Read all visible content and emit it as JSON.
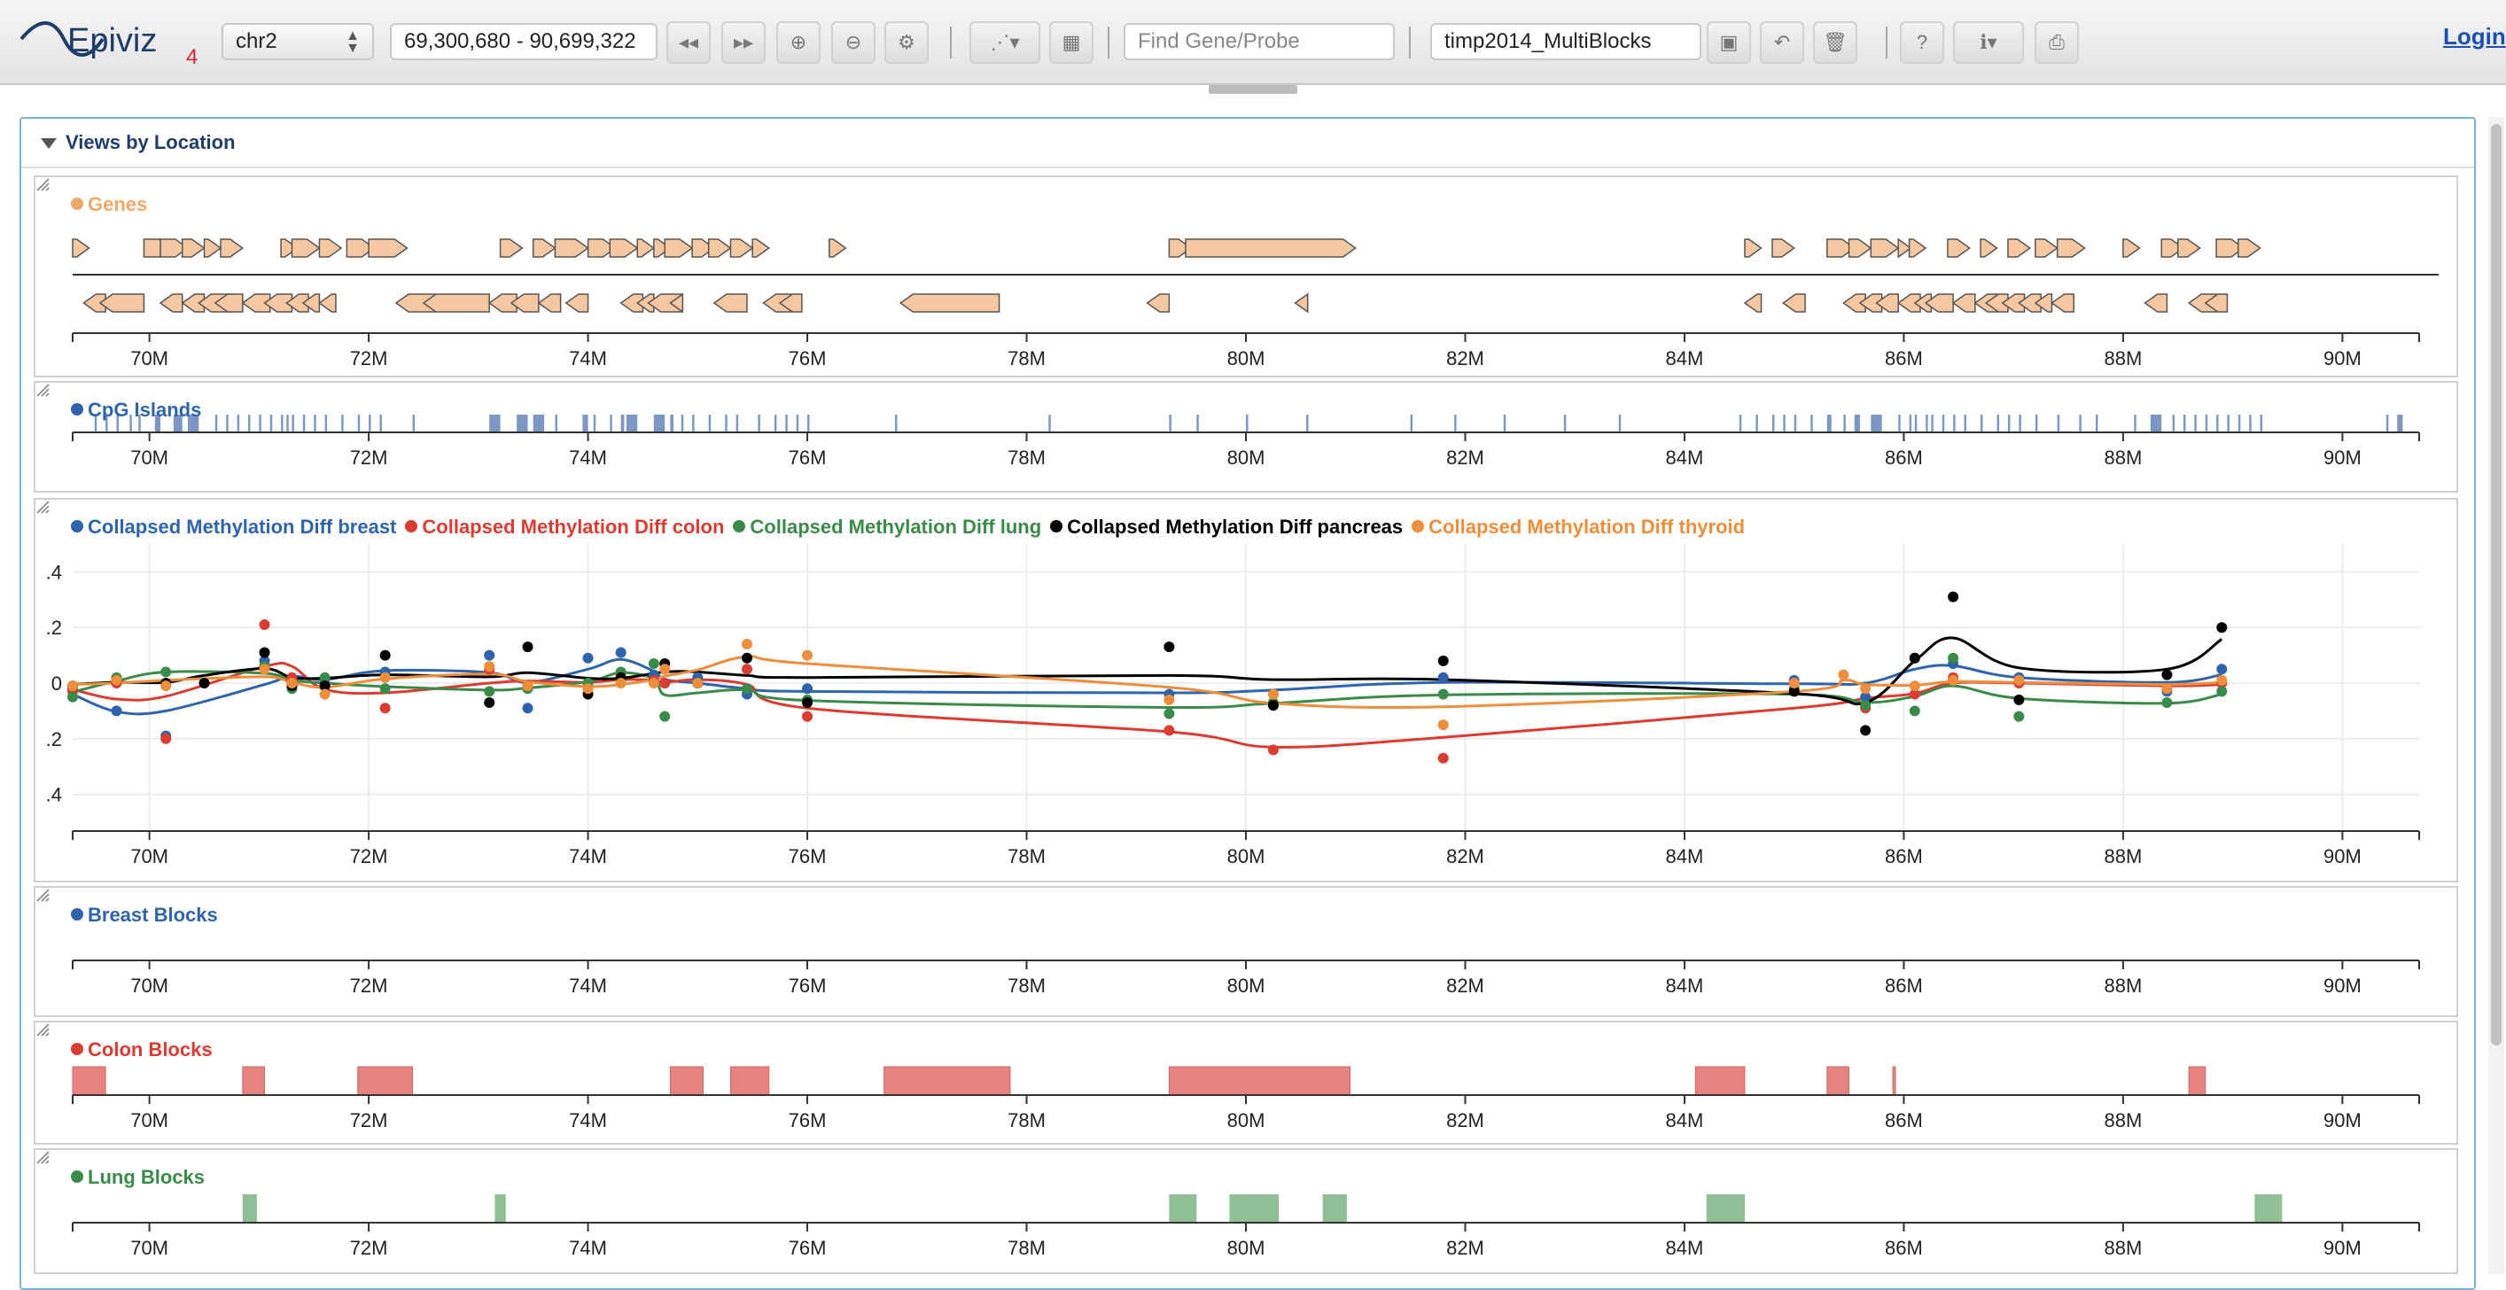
{
  "app": {
    "logo_text": "Epiviz",
    "logo_version": "4",
    "login_label": "Login"
  },
  "toolbar": {
    "chromosome": "chr2",
    "location": "69,300,680 - 90,699,322",
    "find_placeholder": "Find Gene/Probe",
    "workspace_name": "timp2014_MultiBlocks",
    "buttons": [
      {
        "name": "move-left-icon",
        "glyph": "◂◂"
      },
      {
        "name": "move-right-icon",
        "glyph": "▸▸"
      },
      {
        "name": "zoom-in-icon",
        "glyph": "⊕"
      },
      {
        "name": "zoom-out-icon",
        "glyph": "⊖"
      },
      {
        "name": "settings-icon",
        "glyph": "⚙"
      },
      {
        "name": "scatter-plot-menu-icon",
        "glyph": "⋰▾"
      },
      {
        "name": "grid-icon",
        "glyph": "▦"
      },
      {
        "name": "save-icon",
        "glyph": "▣"
      },
      {
        "name": "undo-icon",
        "glyph": "↶"
      },
      {
        "name": "trash-icon",
        "glyph": "🗑"
      },
      {
        "name": "help-icon",
        "glyph": "?"
      },
      {
        "name": "info-menu-icon",
        "glyph": "ℹ▾"
      },
      {
        "name": "print-icon",
        "glyph": "⎙"
      }
    ]
  },
  "panel": {
    "title": "Views by Location"
  },
  "axis": {
    "domain": [
      69.3,
      90.7
    ],
    "ticks": [
      "70M",
      "72M",
      "74M",
      "76M",
      "78M",
      "80M",
      "82M",
      "84M",
      "86M",
      "88M",
      "90M"
    ],
    "tick_values": [
      70,
      72,
      74,
      76,
      78,
      80,
      82,
      84,
      86,
      88,
      90
    ]
  },
  "tracks": {
    "genes": {
      "title": "Genes",
      "color": "#f0a868",
      "fill": "#f6c8a2",
      "forward": [
        [
          69.3,
          69.45
        ],
        [
          69.95,
          70.2
        ],
        [
          70.1,
          70.35
        ],
        [
          70.3,
          70.5
        ],
        [
          70.5,
          70.65
        ],
        [
          70.65,
          70.85
        ],
        [
          71.2,
          71.35
        ],
        [
          71.3,
          71.55
        ],
        [
          71.55,
          71.75
        ],
        [
          71.8,
          72.05
        ],
        [
          72.0,
          72.35
        ],
        [
          73.2,
          73.4
        ],
        [
          73.5,
          73.7
        ],
        [
          73.7,
          74.0
        ],
        [
          74.0,
          74.25
        ],
        [
          74.2,
          74.45
        ],
        [
          74.45,
          74.6
        ],
        [
          74.6,
          74.75
        ],
        [
          74.7,
          74.95
        ],
        [
          74.95,
          75.15
        ],
        [
          75.1,
          75.3
        ],
        [
          75.3,
          75.5
        ],
        [
          75.5,
          75.65
        ],
        [
          76.2,
          76.35
        ],
        [
          79.3,
          79.5
        ],
        [
          79.45,
          81.0
        ],
        [
          84.55,
          84.7
        ],
        [
          84.8,
          85.0
        ],
        [
          85.3,
          85.55
        ],
        [
          85.5,
          85.7
        ],
        [
          85.7,
          85.95
        ],
        [
          85.95,
          86.05
        ],
        [
          86.05,
          86.2
        ],
        [
          86.4,
          86.6
        ],
        [
          86.7,
          86.85
        ],
        [
          86.95,
          87.15
        ],
        [
          87.2,
          87.4
        ],
        [
          87.4,
          87.65
        ],
        [
          88.0,
          88.15
        ],
        [
          88.35,
          88.55
        ],
        [
          88.5,
          88.7
        ],
        [
          88.85,
          89.1
        ],
        [
          89.05,
          89.25
        ]
      ],
      "reverse": [
        [
          69.4,
          69.6
        ],
        [
          69.55,
          69.95
        ],
        [
          70.1,
          70.3
        ],
        [
          70.3,
          70.5
        ],
        [
          70.45,
          70.75
        ],
        [
          70.6,
          70.85
        ],
        [
          70.85,
          71.1
        ],
        [
          71.05,
          71.3
        ],
        [
          71.25,
          71.45
        ],
        [
          71.4,
          71.55
        ],
        [
          71.55,
          71.7
        ],
        [
          72.25,
          72.6
        ],
        [
          72.5,
          73.1
        ],
        [
          73.1,
          73.35
        ],
        [
          73.3,
          73.55
        ],
        [
          73.55,
          73.75
        ],
        [
          73.8,
          74.0
        ],
        [
          74.3,
          74.5
        ],
        [
          74.45,
          74.6
        ],
        [
          74.55,
          74.85
        ],
        [
          74.75,
          74.85
        ],
        [
          75.15,
          75.45
        ],
        [
          75.6,
          75.85
        ],
        [
          75.75,
          75.95
        ],
        [
          76.85,
          77.75
        ],
        [
          79.1,
          79.3
        ],
        [
          80.45,
          80.55
        ],
        [
          84.55,
          84.7
        ],
        [
          84.9,
          85.1
        ],
        [
          85.45,
          85.65
        ],
        [
          85.6,
          85.8
        ],
        [
          85.75,
          85.95
        ],
        [
          85.95,
          86.15
        ],
        [
          86.1,
          86.25
        ],
        [
          86.2,
          86.45
        ],
        [
          86.45,
          86.65
        ],
        [
          86.65,
          86.85
        ],
        [
          86.75,
          86.95
        ],
        [
          86.9,
          87.1
        ],
        [
          87.05,
          87.25
        ],
        [
          87.2,
          87.35
        ],
        [
          87.35,
          87.55
        ],
        [
          88.2,
          88.4
        ],
        [
          88.6,
          88.85
        ],
        [
          88.75,
          88.95
        ]
      ]
    },
    "cpg": {
      "title": "CpG Islands",
      "color": "#2e63ad",
      "fill": "#7d97c4",
      "islands": [
        [
          69.5,
          69.52
        ],
        [
          69.6,
          69.62
        ],
        [
          69.7,
          69.72
        ],
        [
          69.82,
          69.84
        ],
        [
          69.9,
          69.92
        ],
        [
          70.05,
          70.1
        ],
        [
          70.22,
          70.3
        ],
        [
          70.35,
          70.45
        ],
        [
          70.6,
          70.62
        ],
        [
          70.7,
          70.72
        ],
        [
          70.8,
          70.82
        ],
        [
          70.9,
          70.92
        ],
        [
          71.0,
          71.02
        ],
        [
          71.1,
          71.12
        ],
        [
          71.2,
          71.22
        ],
        [
          71.25,
          71.27
        ],
        [
          71.3,
          71.32
        ],
        [
          71.4,
          71.42
        ],
        [
          71.5,
          71.52
        ],
        [
          71.6,
          71.62
        ],
        [
          71.75,
          71.77
        ],
        [
          71.9,
          71.92
        ],
        [
          72.0,
          72.02
        ],
        [
          72.1,
          72.12
        ],
        [
          72.4,
          72.42
        ],
        [
          73.1,
          73.2
        ],
        [
          73.35,
          73.45
        ],
        [
          73.5,
          73.6
        ],
        [
          73.7,
          73.72
        ],
        [
          73.95,
          74.0
        ],
        [
          74.05,
          74.07
        ],
        [
          74.2,
          74.22
        ],
        [
          74.3,
          74.33
        ],
        [
          74.35,
          74.45
        ],
        [
          74.6,
          74.7
        ],
        [
          74.75,
          74.78
        ],
        [
          74.85,
          74.87
        ],
        [
          74.95,
          74.97
        ],
        [
          75.1,
          75.12
        ],
        [
          75.25,
          75.27
        ],
        [
          75.35,
          75.37
        ],
        [
          75.55,
          75.57
        ],
        [
          75.7,
          75.72
        ],
        [
          75.8,
          75.82
        ],
        [
          75.9,
          75.92
        ],
        [
          76.0,
          76.02
        ],
        [
          76.8,
          76.82
        ],
        [
          78.2,
          78.22
        ],
        [
          79.3,
          79.32
        ],
        [
          79.55,
          79.57
        ],
        [
          80.0,
          80.02
        ],
        [
          80.55,
          80.57
        ],
        [
          81.5,
          81.52
        ],
        [
          81.9,
          81.92
        ],
        [
          82.35,
          82.37
        ],
        [
          82.9,
          82.92
        ],
        [
          83.4,
          83.42
        ],
        [
          84.5,
          84.52
        ],
        [
          84.65,
          84.67
        ],
        [
          84.8,
          84.82
        ],
        [
          84.9,
          84.92
        ],
        [
          85.0,
          85.02
        ],
        [
          85.15,
          85.17
        ],
        [
          85.3,
          85.34
        ],
        [
          85.45,
          85.47
        ],
        [
          85.55,
          85.6
        ],
        [
          85.7,
          85.8
        ],
        [
          85.95,
          85.97
        ],
        [
          86.05,
          86.07
        ],
        [
          86.1,
          86.12
        ],
        [
          86.2,
          86.22
        ],
        [
          86.25,
          86.27
        ],
        [
          86.35,
          86.37
        ],
        [
          86.45,
          86.47
        ],
        [
          86.55,
          86.57
        ],
        [
          86.7,
          86.72
        ],
        [
          86.85,
          86.87
        ],
        [
          86.95,
          86.97
        ],
        [
          87.05,
          87.07
        ],
        [
          87.2,
          87.22
        ],
        [
          87.4,
          87.42
        ],
        [
          87.6,
          87.62
        ],
        [
          87.75,
          87.77
        ],
        [
          88.1,
          88.12
        ],
        [
          88.25,
          88.35
        ],
        [
          88.45,
          88.47
        ],
        [
          88.55,
          88.57
        ],
        [
          88.65,
          88.67
        ],
        [
          88.75,
          88.77
        ],
        [
          88.85,
          88.87
        ],
        [
          88.95,
          88.97
        ],
        [
          89.05,
          89.07
        ],
        [
          89.15,
          89.17
        ],
        [
          89.25,
          89.27
        ],
        [
          90.4,
          90.42
        ],
        [
          90.5,
          90.55
        ]
      ]
    },
    "methylation": {
      "legend": [
        {
          "name": "Collapsed Methylation Diff breast",
          "color": "#2e63ad"
        },
        {
          "name": "Collapsed Methylation Diff colon",
          "color": "#dc3b32"
        },
        {
          "name": "Collapsed Methylation Diff lung",
          "color": "#3a8a49"
        },
        {
          "name": "Collapsed Methylation Diff pancreas",
          "color": "#000000"
        },
        {
          "name": "Collapsed Methylation Diff thyroid",
          "color": "#ee8d3a"
        }
      ],
      "y_ticks": [
        ".4",
        ".2",
        "0",
        ".2",
        ".4"
      ],
      "y_tick_values": [
        0.4,
        0.2,
        0,
        -0.2,
        -0.4
      ],
      "y_domain": [
        -0.5,
        0.5
      ]
    },
    "breast_blocks": {
      "title": "Breast Blocks",
      "color": "#2e63ad",
      "blocks": []
    },
    "colon_blocks": {
      "title": "Colon Blocks",
      "color": "#dc3b32",
      "fill": "#e8827e",
      "blocks": [
        [
          69.3,
          69.6
        ],
        [
          70.85,
          71.05
        ],
        [
          71.9,
          72.4
        ],
        [
          74.75,
          75.05
        ],
        [
          75.3,
          75.65
        ],
        [
          76.7,
          77.85
        ],
        [
          79.3,
          80.95
        ],
        [
          84.1,
          84.55
        ],
        [
          85.3,
          85.5
        ],
        [
          85.9,
          85.92
        ],
        [
          88.6,
          88.75
        ]
      ]
    },
    "lung_blocks": {
      "title": "Lung Blocks",
      "color": "#3a8a49",
      "fill": "#8fbf95",
      "blocks": [
        [
          70.85,
          70.98
        ],
        [
          73.15,
          73.25
        ],
        [
          79.3,
          79.55
        ],
        [
          79.85,
          80.3
        ],
        [
          80.7,
          80.92
        ],
        [
          84.2,
          84.55
        ],
        [
          89.2,
          89.45
        ]
      ]
    }
  },
  "chart_data": {
    "type": "scatter",
    "xlabel": "",
    "ylabel": "",
    "xlim": [
      69.3,
      90.7
    ],
    "ylim": [
      -0.5,
      0.5
    ],
    "series": [
      {
        "name": "Collapsed Methylation Diff breast",
        "color": "#2e63ad",
        "x": [
          69.3,
          69.7,
          70.15,
          71.05,
          71.3,
          71.6,
          72.15,
          73.1,
          73.45,
          74.0,
          74.3,
          74.6,
          74.7,
          75.0,
          75.45,
          76.0,
          79.3,
          80.25,
          81.8,
          85.0,
          85.65,
          86.1,
          86.45,
          87.05,
          88.4,
          88.9
        ],
        "y": [
          -0.02,
          -0.1,
          -0.19,
          0.08,
          0.01,
          0.0,
          0.04,
          0.1,
          -0.09,
          0.09,
          0.11,
          0.03,
          0.0,
          0.02,
          -0.04,
          -0.02,
          -0.04,
          -0.04,
          0.02,
          0.01,
          -0.05,
          0.09,
          0.07,
          0.02,
          -0.03,
          0.05
        ]
      },
      {
        "name": "Collapsed Methylation Diff colon",
        "color": "#dc3b32",
        "x": [
          69.3,
          69.7,
          70.15,
          71.05,
          71.3,
          71.6,
          72.15,
          73.1,
          73.45,
          74.0,
          74.3,
          74.6,
          74.7,
          75.0,
          75.45,
          76.0,
          79.3,
          80.25,
          81.8,
          85.0,
          85.65,
          86.1,
          86.45,
          87.05,
          88.4,
          88.9
        ],
        "y": [
          -0.03,
          0.0,
          -0.2,
          0.21,
          0.02,
          -0.01,
          -0.09,
          0.05,
          -0.01,
          0.0,
          0.02,
          0.01,
          0.0,
          0.0,
          0.05,
          -0.12,
          -0.17,
          -0.24,
          -0.27,
          0.0,
          -0.09,
          -0.04,
          0.02,
          0.0,
          -0.02,
          0.0
        ]
      },
      {
        "name": "Collapsed Methylation Diff lung",
        "color": "#3a8a49",
        "x": [
          69.3,
          69.7,
          70.15,
          71.05,
          71.3,
          71.6,
          72.15,
          73.1,
          73.45,
          74.0,
          74.3,
          74.6,
          74.7,
          75.0,
          75.45,
          76.0,
          79.3,
          80.25,
          81.8,
          85.0,
          85.65,
          86.1,
          86.45,
          87.05,
          88.4,
          88.9
        ],
        "y": [
          -0.05,
          0.02,
          0.04,
          0.06,
          -0.02,
          0.02,
          -0.02,
          -0.03,
          -0.02,
          0.0,
          0.04,
          0.07,
          -0.12,
          0.0,
          -0.02,
          -0.06,
          -0.11,
          -0.07,
          -0.04,
          -0.02,
          -0.08,
          -0.1,
          0.09,
          -0.12,
          -0.07,
          -0.03
        ]
      },
      {
        "name": "Collapsed Methylation Diff pancreas",
        "color": "#000000",
        "x": [
          69.3,
          69.7,
          70.15,
          70.5,
          71.05,
          71.3,
          71.6,
          72.15,
          73.1,
          73.45,
          74.0,
          74.3,
          74.7,
          75.0,
          75.45,
          76.0,
          79.3,
          80.25,
          81.8,
          85.0,
          85.65,
          86.1,
          86.45,
          87.05,
          88.4,
          88.9
        ],
        "y": [
          -0.01,
          0.01,
          0.0,
          0.0,
          0.11,
          -0.01,
          -0.01,
          0.1,
          -0.07,
          0.13,
          -0.04,
          0.02,
          0.07,
          0.0,
          0.09,
          -0.07,
          0.13,
          -0.08,
          0.08,
          -0.03,
          -0.17,
          0.09,
          0.31,
          -0.06,
          0.03,
          0.2
        ]
      },
      {
        "name": "Collapsed Methylation Diff thyroid",
        "color": "#ee8d3a",
        "x": [
          69.3,
          69.7,
          70.15,
          71.05,
          71.3,
          71.6,
          72.15,
          73.1,
          73.45,
          74.0,
          74.3,
          74.6,
          74.7,
          75.0,
          75.45,
          76.0,
          79.3,
          80.25,
          81.8,
          85.0,
          85.45,
          85.65,
          86.1,
          86.45,
          87.05,
          88.4,
          88.9
        ],
        "y": [
          -0.01,
          0.01,
          -0.01,
          0.05,
          0.0,
          -0.04,
          0.02,
          0.06,
          -0.01,
          -0.02,
          0.0,
          0.0,
          0.05,
          0.0,
          0.14,
          0.1,
          -0.06,
          -0.04,
          -0.15,
          0.0,
          0.03,
          -0.02,
          -0.01,
          0.01,
          0.01,
          -0.02,
          0.01
        ]
      }
    ]
  }
}
